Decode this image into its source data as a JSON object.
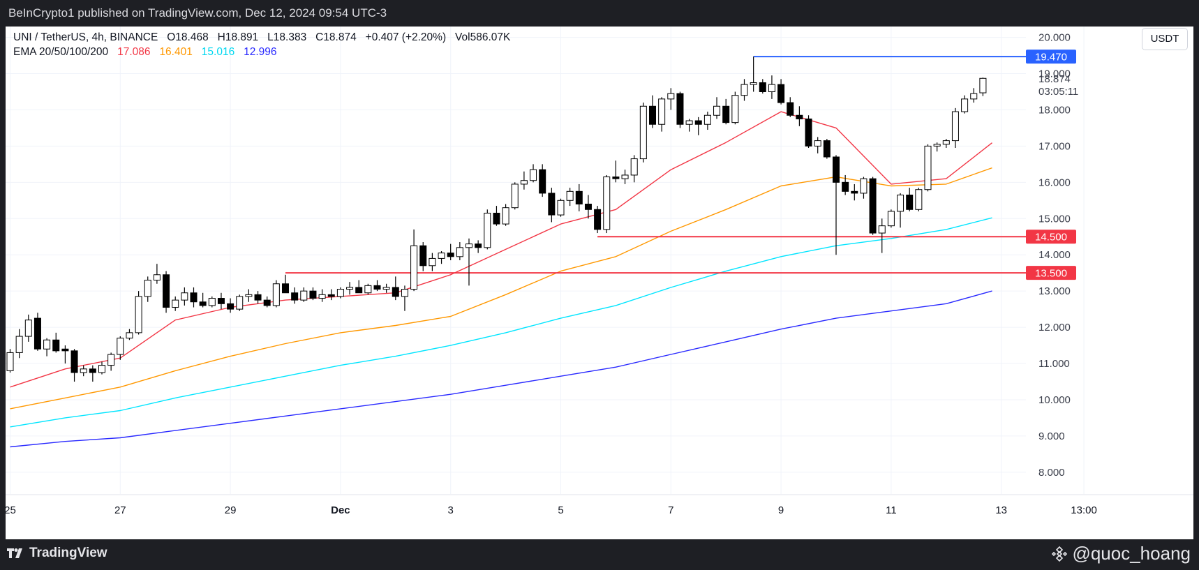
{
  "header": {
    "publish_text": "BeInCrypto1 published on TradingView.com, Dec 12, 2024 09:54 UTC-3"
  },
  "legend": {
    "symbol_line": "UNI / TetherUS, 4h, BINANCE",
    "open": "O18.468",
    "high": "H18.891",
    "low": "L18.383",
    "close": "C18.874",
    "change": "+0.407 (+2.20%)",
    "volume": "Vol586.07K",
    "ema_label": "EMA 20/50/100/200",
    "ema_values": [
      "17.086",
      "16.401",
      "15.016",
      "12.996"
    ],
    "ema_colors": [
      "#f23645",
      "#ff9800",
      "#00e5ff",
      "#2929ff"
    ]
  },
  "toolbar": {
    "currency": "USDT"
  },
  "footer": {
    "brand": "TradingView",
    "watermark": "@quoc_hoang"
  },
  "chart_data": {
    "type": "candlestick",
    "symbol": "UNI/USDT",
    "interval": "4h",
    "y_axis": {
      "ticks": [
        8,
        9,
        10,
        11,
        12,
        13,
        14,
        15,
        16,
        17,
        18,
        19,
        20
      ],
      "tick_labels": [
        "8.000",
        "9.000",
        "10.000",
        "11.000",
        "12.000",
        "13.000",
        "14.000",
        "15.000",
        "16.000",
        "17.000",
        "18.000",
        "19.000",
        "20.000"
      ],
      "range": [
        7.4,
        20.3
      ]
    },
    "x_axis": {
      "labels": [
        "25",
        "27",
        "29",
        "Dec",
        "3",
        "5",
        "7",
        "9",
        "11",
        "13",
        "13:00"
      ],
      "label_bars": [
        0,
        12,
        24,
        36,
        48,
        60,
        72,
        84,
        96,
        108,
        117
      ]
    },
    "candles": [
      [
        10.8,
        11.4,
        10.75,
        11.3
      ],
      [
        11.3,
        11.95,
        11.15,
        11.75
      ],
      [
        11.75,
        12.35,
        11.6,
        12.2
      ],
      [
        12.25,
        12.4,
        11.35,
        11.4
      ],
      [
        11.4,
        11.7,
        11.2,
        11.65
      ],
      [
        11.65,
        11.85,
        11.3,
        11.35
      ],
      [
        11.4,
        11.5,
        11.0,
        11.35
      ],
      [
        11.35,
        11.4,
        10.5,
        10.75
      ],
      [
        10.75,
        10.95,
        10.65,
        10.85
      ],
      [
        10.85,
        10.95,
        10.5,
        10.75
      ],
      [
        10.75,
        11.05,
        10.7,
        10.95
      ],
      [
        10.95,
        11.3,
        10.8,
        11.25
      ],
      [
        11.25,
        11.75,
        11.1,
        11.7
      ],
      [
        11.7,
        11.95,
        11.65,
        11.85
      ],
      [
        11.85,
        13.0,
        11.8,
        12.85
      ],
      [
        12.85,
        13.4,
        12.7,
        13.3
      ],
      [
        13.3,
        13.75,
        13.2,
        13.45
      ],
      [
        13.45,
        13.55,
        12.4,
        12.55
      ],
      [
        12.55,
        12.85,
        12.45,
        12.75
      ],
      [
        12.75,
        13.1,
        12.6,
        12.95
      ],
      [
        12.95,
        13.1,
        12.55,
        12.7
      ],
      [
        12.7,
        12.95,
        12.55,
        12.6
      ],
      [
        12.6,
        12.85,
        12.55,
        12.8
      ],
      [
        12.8,
        12.95,
        12.5,
        12.65
      ],
      [
        12.65,
        12.8,
        12.4,
        12.5
      ],
      [
        12.5,
        12.9,
        12.45,
        12.85
      ],
      [
        12.85,
        13.05,
        12.7,
        12.9
      ],
      [
        12.9,
        13.0,
        12.65,
        12.75
      ],
      [
        12.75,
        12.85,
        12.55,
        12.6
      ],
      [
        12.6,
        13.3,
        12.55,
        13.2
      ],
      [
        13.2,
        13.45,
        12.95,
        12.95
      ],
      [
        12.95,
        13.1,
        12.65,
        12.75
      ],
      [
        12.75,
        13.1,
        12.7,
        13.0
      ],
      [
        13.0,
        13.1,
        12.75,
        12.8
      ],
      [
        12.8,
        13.05,
        12.7,
        12.9
      ],
      [
        12.9,
        13.05,
        12.75,
        12.85
      ],
      [
        12.85,
        13.1,
        12.8,
        13.05
      ],
      [
        13.05,
        13.25,
        12.9,
        13.1
      ],
      [
        13.1,
        13.3,
        12.95,
        12.95
      ],
      [
        12.95,
        13.2,
        12.9,
        13.15
      ],
      [
        13.15,
        13.3,
        13.0,
        13.05
      ],
      [
        13.05,
        13.2,
        12.95,
        13.1
      ],
      [
        13.1,
        13.4,
        12.75,
        12.85
      ],
      [
        12.85,
        13.15,
        12.45,
        13.05
      ],
      [
        13.05,
        14.7,
        13.0,
        14.25
      ],
      [
        14.25,
        14.35,
        13.55,
        13.7
      ],
      [
        13.7,
        14.05,
        13.55,
        13.9
      ],
      [
        13.9,
        14.1,
        13.75,
        14.05
      ],
      [
        14.05,
        14.3,
        13.85,
        13.95
      ],
      [
        13.95,
        14.35,
        13.85,
        14.2
      ],
      [
        14.2,
        14.45,
        13.15,
        14.3
      ],
      [
        14.3,
        14.4,
        14.05,
        14.2
      ],
      [
        14.2,
        15.25,
        14.15,
        15.15
      ],
      [
        15.15,
        15.35,
        14.8,
        14.85
      ],
      [
        14.85,
        15.4,
        14.8,
        15.3
      ],
      [
        15.3,
        16.0,
        15.25,
        15.95
      ],
      [
        15.95,
        16.3,
        15.8,
        16.05
      ],
      [
        16.05,
        16.5,
        16.0,
        16.35
      ],
      [
        16.35,
        16.5,
        15.6,
        15.7
      ],
      [
        15.7,
        15.85,
        14.9,
        15.1
      ],
      [
        15.1,
        15.55,
        15.05,
        15.5
      ],
      [
        15.5,
        15.85,
        15.35,
        15.75
      ],
      [
        15.75,
        15.95,
        15.2,
        15.4
      ],
      [
        15.4,
        15.65,
        15.0,
        15.25
      ],
      [
        15.25,
        15.35,
        14.6,
        14.7
      ],
      [
        14.7,
        16.2,
        14.6,
        16.15
      ],
      [
        16.15,
        16.6,
        16.0,
        16.1
      ],
      [
        16.1,
        16.35,
        15.95,
        16.2
      ],
      [
        16.2,
        16.75,
        16.0,
        16.65
      ],
      [
        16.65,
        18.2,
        16.55,
        18.1
      ],
      [
        18.1,
        18.4,
        17.5,
        17.6
      ],
      [
        17.6,
        18.35,
        17.4,
        18.3
      ],
      [
        18.3,
        18.6,
        18.0,
        18.45
      ],
      [
        18.45,
        18.5,
        17.5,
        17.6
      ],
      [
        17.6,
        17.75,
        17.4,
        17.7
      ],
      [
        17.7,
        17.8,
        17.3,
        17.6
      ],
      [
        17.6,
        17.95,
        17.45,
        17.85
      ],
      [
        17.85,
        18.35,
        17.75,
        18.1
      ],
      [
        18.1,
        18.3,
        17.6,
        17.65
      ],
      [
        17.65,
        18.5,
        17.6,
        18.4
      ],
      [
        18.4,
        18.85,
        18.25,
        18.7
      ],
      [
        18.7,
        19.47,
        18.5,
        18.75
      ],
      [
        18.75,
        18.85,
        18.45,
        18.5
      ],
      [
        18.5,
        18.95,
        18.3,
        18.7
      ],
      [
        18.7,
        18.85,
        18.15,
        18.2
      ],
      [
        18.2,
        18.35,
        17.8,
        17.85
      ],
      [
        17.85,
        18.1,
        17.55,
        17.75
      ],
      [
        17.75,
        17.85,
        16.95,
        17.0
      ],
      [
        17.0,
        17.25,
        16.8,
        17.15
      ],
      [
        17.15,
        17.2,
        16.65,
        16.7
      ],
      [
        16.7,
        16.75,
        14.0,
        16.0
      ],
      [
        16.0,
        16.2,
        15.65,
        15.75
      ],
      [
        15.75,
        15.95,
        15.5,
        15.7
      ],
      [
        15.7,
        16.15,
        15.55,
        16.1
      ],
      [
        16.1,
        16.15,
        14.55,
        14.6
      ],
      [
        14.6,
        15.0,
        14.05,
        14.8
      ],
      [
        14.8,
        15.25,
        14.75,
        15.2
      ],
      [
        15.2,
        15.7,
        14.75,
        15.65
      ],
      [
        15.65,
        15.85,
        15.2,
        15.25
      ],
      [
        15.25,
        15.85,
        15.2,
        15.8
      ],
      [
        15.8,
        17.05,
        15.75,
        17.0
      ],
      [
        17.0,
        17.1,
        16.85,
        17.05
      ],
      [
        17.05,
        17.2,
        16.95,
        17.15
      ],
      [
        17.15,
        18.05,
        16.95,
        17.95
      ],
      [
        17.95,
        18.4,
        17.9,
        18.3
      ],
      [
        18.3,
        18.6,
        18.2,
        18.45
      ],
      [
        18.47,
        18.89,
        18.38,
        18.87
      ]
    ],
    "ema": [
      {
        "name": "EMA 20",
        "color": "#f23645",
        "points": [
          [
            0,
            10.35
          ],
          [
            6,
            10.85
          ],
          [
            12,
            11.15
          ],
          [
            18,
            12.2
          ],
          [
            24,
            12.55
          ],
          [
            30,
            12.75
          ],
          [
            36,
            12.85
          ],
          [
            42,
            12.95
          ],
          [
            48,
            13.45
          ],
          [
            54,
            14.15
          ],
          [
            60,
            14.85
          ],
          [
            66,
            15.25
          ],
          [
            72,
            16.35
          ],
          [
            78,
            17.1
          ],
          [
            84,
            17.95
          ],
          [
            90,
            17.5
          ],
          [
            96,
            15.95
          ],
          [
            102,
            16.1
          ],
          [
            107,
            17.09
          ]
        ]
      },
      {
        "name": "EMA 50",
        "color": "#ff9800",
        "points": [
          [
            0,
            9.75
          ],
          [
            6,
            10.05
          ],
          [
            12,
            10.35
          ],
          [
            18,
            10.8
          ],
          [
            24,
            11.2
          ],
          [
            30,
            11.55
          ],
          [
            36,
            11.85
          ],
          [
            42,
            12.05
          ],
          [
            48,
            12.3
          ],
          [
            54,
            12.9
          ],
          [
            60,
            13.55
          ],
          [
            66,
            13.95
          ],
          [
            72,
            14.65
          ],
          [
            78,
            15.25
          ],
          [
            84,
            15.9
          ],
          [
            90,
            16.15
          ],
          [
            96,
            15.9
          ],
          [
            102,
            15.95
          ],
          [
            107,
            16.4
          ]
        ]
      },
      {
        "name": "EMA 100",
        "color": "#00e5ff",
        "points": [
          [
            0,
            9.25
          ],
          [
            6,
            9.5
          ],
          [
            12,
            9.7
          ],
          [
            18,
            10.05
          ],
          [
            24,
            10.35
          ],
          [
            30,
            10.65
          ],
          [
            36,
            10.95
          ],
          [
            42,
            11.2
          ],
          [
            48,
            11.5
          ],
          [
            54,
            11.85
          ],
          [
            60,
            12.25
          ],
          [
            66,
            12.6
          ],
          [
            72,
            13.1
          ],
          [
            78,
            13.55
          ],
          [
            84,
            13.95
          ],
          [
            90,
            14.25
          ],
          [
            96,
            14.45
          ],
          [
            102,
            14.7
          ],
          [
            107,
            15.02
          ]
        ]
      },
      {
        "name": "EMA 200",
        "color": "#2929ff",
        "points": [
          [
            0,
            8.7
          ],
          [
            6,
            8.85
          ],
          [
            12,
            8.95
          ],
          [
            18,
            9.15
          ],
          [
            24,
            9.35
          ],
          [
            30,
            9.55
          ],
          [
            36,
            9.75
          ],
          [
            42,
            9.95
          ],
          [
            48,
            10.15
          ],
          [
            54,
            10.4
          ],
          [
            60,
            10.65
          ],
          [
            66,
            10.9
          ],
          [
            72,
            11.25
          ],
          [
            78,
            11.6
          ],
          [
            84,
            11.95
          ],
          [
            90,
            12.25
          ],
          [
            96,
            12.45
          ],
          [
            102,
            12.65
          ],
          [
            107,
            13.0
          ]
        ]
      }
    ],
    "horizontal_levels": [
      {
        "price": 19.47,
        "label": "19.470",
        "color": "#2962ff",
        "from_bar": 81
      },
      {
        "price": 14.5,
        "label": "14.500",
        "color": "#f23645",
        "from_bar": 64
      },
      {
        "price": 13.5,
        "label": "13.500",
        "color": "#f23645",
        "from_bar": 30
      }
    ],
    "last_price": {
      "label": "18.874",
      "countdown": "03:05:11",
      "price": 18.874
    }
  }
}
